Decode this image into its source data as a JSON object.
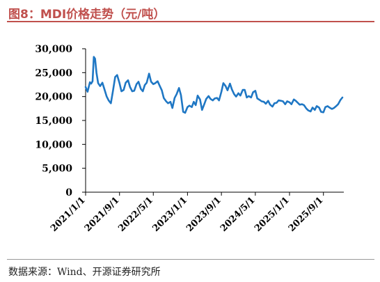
{
  "title": "图8：MDI价格走势（元/吨）",
  "source": "数据来源：Wind、开源证券研究所",
  "colors": {
    "title": "#c0504d",
    "line": "#1f77c4",
    "axis": "#000000"
  },
  "chart_data": {
    "type": "line",
    "title": "",
    "xlabel": "",
    "ylabel": "",
    "ylim": [
      0,
      30000
    ],
    "yticks": [
      0,
      5000,
      10000,
      15000,
      20000,
      25000,
      30000
    ],
    "ytick_labels": [
      "0",
      "5,000",
      "10,000",
      "15,000",
      "20,000",
      "25,000",
      "30,000"
    ],
    "xlim": [
      "2021/1/1",
      "2026/1/25"
    ],
    "xticks": [
      "2021/1/1",
      "2021/9/1",
      "2022/5/1",
      "2023/1/1",
      "2023/9/1",
      "2024/5/1",
      "2025/1/1",
      "2025/9/1"
    ],
    "grid": false,
    "legend": "none",
    "series": [
      {
        "name": "",
        "x": [
          "2021/1/1",
          "2021/1/15",
          "2021/2/1",
          "2021/2/10",
          "2021/2/20",
          "2021/3/1",
          "2021/3/10",
          "2021/3/20",
          "2021/4/1",
          "2021/4/15",
          "2021/5/1",
          "2021/5/15",
          "2021/6/1",
          "2021/6/15",
          "2021/7/1",
          "2021/7/15",
          "2021/8/1",
          "2021/8/15",
          "2021/9/1",
          "2021/9/15",
          "2021/10/1",
          "2021/10/15",
          "2021/11/1",
          "2021/11/15",
          "2021/12/1",
          "2021/12/15",
          "2022/1/1",
          "2022/1/15",
          "2022/2/1",
          "2022/2/15",
          "2022/3/1",
          "2022/3/15",
          "2022/4/1",
          "2022/4/15",
          "2022/5/1",
          "2022/5/15",
          "2022/6/1",
          "2022/6/15",
          "2022/7/1",
          "2022/7/15",
          "2022/8/1",
          "2022/8/15",
          "2022/9/1",
          "2022/9/15",
          "2022/10/1",
          "2022/10/15",
          "2022/11/1",
          "2022/11/15",
          "2022/12/1",
          "2022/12/15",
          "2023/1/1",
          "2023/1/15",
          "2023/2/1",
          "2023/2/15",
          "2023/3/1",
          "2023/3/15",
          "2023/4/1",
          "2023/4/15",
          "2023/5/1",
          "2023/5/15",
          "2023/6/1",
          "2023/6/15",
          "2023/7/1",
          "2023/7/15",
          "2023/8/1",
          "2023/8/15",
          "2023/9/1",
          "2023/9/15",
          "2023/10/1",
          "2023/10/15",
          "2023/11/1",
          "2023/11/15",
          "2023/12/1",
          "2023/12/15",
          "2024/1/1",
          "2024/1/15",
          "2024/2/1",
          "2024/2/15",
          "2024/3/1",
          "2024/3/15",
          "2024/4/1",
          "2024/4/15",
          "2024/5/1",
          "2024/5/15",
          "2024/6/1",
          "2024/6/15",
          "2024/7/1",
          "2024/7/15",
          "2024/8/1",
          "2024/8/15",
          "2024/9/1",
          "2024/9/15",
          "2024/10/1",
          "2024/10/15",
          "2024/11/1",
          "2024/11/15",
          "2024/12/1",
          "2024/12/15",
          "2025/1/1",
          "2025/1/15",
          "2025/2/1",
          "2025/2/15",
          "2025/3/1",
          "2025/3/15",
          "2025/4/1",
          "2025/4/15",
          "2025/5/1",
          "2025/5/15",
          "2025/6/1",
          "2025/6/15",
          "2025/7/1",
          "2025/7/15",
          "2025/8/1",
          "2025/8/15",
          "2025/9/1",
          "2025/9/15",
          "2025/10/1",
          "2025/10/15",
          "2025/11/1",
          "2025/11/15",
          "2025/12/1",
          "2025/12/15",
          "2026/1/1",
          "2026/1/15"
        ],
        "y": [
          22000,
          21000,
          23000,
          22700,
          23200,
          28300,
          27900,
          25000,
          22800,
          22200,
          22900,
          21600,
          20000,
          19200,
          18600,
          21000,
          24100,
          24500,
          22800,
          21100,
          21400,
          22900,
          23400,
          22000,
          21100,
          21200,
          22600,
          23100,
          21600,
          21100,
          22400,
          22900,
          24800,
          23100,
          22600,
          22800,
          23200,
          22300,
          21300,
          19700,
          19000,
          18600,
          18900,
          17600,
          19700,
          20500,
          21800,
          20300,
          16800,
          16600,
          17800,
          18100,
          17800,
          18900,
          18200,
          20200,
          19400,
          17200,
          18400,
          19500,
          20100,
          19500,
          19200,
          19600,
          19700,
          19200,
          21000,
          22800,
          22200,
          21300,
          22700,
          21500,
          20500,
          20000,
          20700,
          20200,
          21400,
          21400,
          19800,
          20100,
          19800,
          20900,
          21200,
          19600,
          19300,
          19000,
          18900,
          18500,
          19100,
          18300,
          17900,
          18600,
          18700,
          19200,
          19100,
          19000,
          18400,
          19000,
          18800,
          18400,
          19400,
          19100,
          18700,
          18300,
          18400,
          18200,
          17500,
          17100,
          16900,
          17700,
          17200,
          18000,
          17700,
          16800,
          16700,
          17800,
          18000,
          17700,
          17400,
          17600,
          18000,
          18400,
          19300,
          19800
        ]
      }
    ]
  }
}
